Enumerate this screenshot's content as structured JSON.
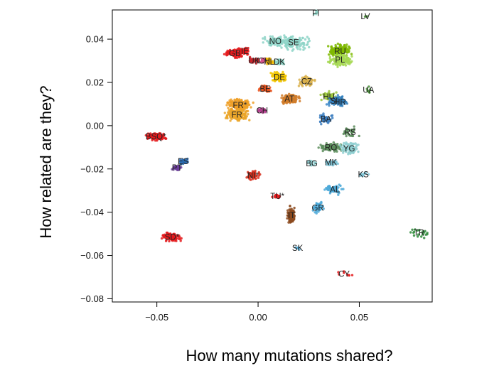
{
  "chart_data": {
    "type": "scatter",
    "title": "",
    "xlabel": "How many mutations shared?",
    "ylabel": "How related are they?",
    "xlim": [
      -0.072,
      0.086
    ],
    "ylim": [
      -0.0815,
      0.0535
    ],
    "x_ticks": [
      -0.05,
      0.0,
      0.05
    ],
    "x_tick_labels": [
      "−0.05",
      "0.00",
      "0.05"
    ],
    "y_ticks": [
      0.04,
      0.02,
      0.0,
      -0.02,
      -0.04,
      -0.06,
      -0.08
    ],
    "y_tick_labels": [
      "0.04",
      "0.02",
      "0.00",
      "−0.02",
      "−0.04",
      "−0.06",
      "−0.08"
    ],
    "grid": false,
    "legend": "none (labels placed directly on clusters)",
    "groups": [
      {
        "label": "FI",
        "x": 0.0285,
        "y": 0.052,
        "color": "#8dd3c7",
        "spread": [
          0.004,
          0.002
        ],
        "n": 6
      },
      {
        "label": "LV",
        "x": 0.053,
        "y": 0.0505,
        "color": "#4a8f3a",
        "spread": [
          0.002,
          0.001
        ],
        "n": 3
      },
      {
        "label": "NO",
        "x": 0.0085,
        "y": 0.039,
        "color": "#8dd3c7",
        "spread": [
          0.008,
          0.003
        ],
        "n": 80
      },
      {
        "label": "SE",
        "x": 0.0175,
        "y": 0.0385,
        "color": "#8dd3c7",
        "spread": [
          0.01,
          0.004
        ],
        "n": 140
      },
      {
        "label": "GB",
        "x": -0.0115,
        "y": 0.0335,
        "color": "#e41a1c",
        "spread": [
          0.006,
          0.003
        ],
        "n": 90
      },
      {
        "label": "IE",
        "x": -0.0065,
        "y": 0.0345,
        "color": "#e41a1c",
        "spread": [
          0.003,
          0.002
        ],
        "n": 40
      },
      {
        "label": "UK",
        "x": -0.002,
        "y": 0.03,
        "color": "#cc2229",
        "spread": [
          0.004,
          0.002
        ],
        "n": 40
      },
      {
        "label": "ICH",
        "x": 0.0025,
        "y": 0.03,
        "color": "#d45087",
        "spread": [
          0.002,
          0.0015
        ],
        "n": 20
      },
      {
        "label": "NL",
        "x": 0.0055,
        "y": 0.0295,
        "color": "#f2b701",
        "spread": [
          0.003,
          0.002
        ],
        "n": 40
      },
      {
        "label": "DK",
        "x": 0.0105,
        "y": 0.0295,
        "color": "#8dd3c7",
        "spread": [
          0.004,
          0.002
        ],
        "n": 40
      },
      {
        "label": "RU",
        "x": 0.0405,
        "y": 0.0345,
        "color": "#7fb800",
        "spread": [
          0.007,
          0.004
        ],
        "n": 160
      },
      {
        "label": "PL",
        "x": 0.0405,
        "y": 0.0305,
        "color": "#a6d854",
        "spread": [
          0.007,
          0.004
        ],
        "n": 160
      },
      {
        "label": "DE",
        "x": 0.0105,
        "y": 0.0225,
        "color": "#f2c500",
        "spread": [
          0.005,
          0.003
        ],
        "n": 120
      },
      {
        "label": "CZ",
        "x": 0.024,
        "y": 0.0205,
        "color": "#d9b04a",
        "spread": [
          0.005,
          0.003
        ],
        "n": 60
      },
      {
        "label": "UA",
        "x": 0.0545,
        "y": 0.0165,
        "color": "#4a8f3a",
        "spread": [
          0.003,
          0.002
        ],
        "n": 8
      },
      {
        "label": "BE",
        "x": 0.0035,
        "y": 0.017,
        "color": "#e8501a",
        "spread": [
          0.004,
          0.002
        ],
        "n": 60
      },
      {
        "label": "AT",
        "x": 0.0155,
        "y": 0.0125,
        "color": "#d17d2a",
        "spread": [
          0.006,
          0.003
        ],
        "n": 120
      },
      {
        "label": "HU",
        "x": 0.035,
        "y": 0.0135,
        "color": "#9bc53d",
        "spread": [
          0.005,
          0.003
        ],
        "n": 70
      },
      {
        "label": "SI",
        "x": 0.0375,
        "y": 0.0115,
        "color": "#3a87c8",
        "spread": [
          0.005,
          0.003
        ],
        "n": 60
      },
      {
        "label": "HR",
        "x": 0.0405,
        "y": 0.011,
        "color": "#2e7bb8",
        "spread": [
          0.005,
          0.003
        ],
        "n": 60
      },
      {
        "label": "FR*",
        "x": -0.009,
        "y": 0.0095,
        "color": "#ee9f27",
        "spread": [
          0.008,
          0.004
        ],
        "n": 160
      },
      {
        "label": "FR",
        "x": -0.0105,
        "y": 0.005,
        "color": "#eba62a",
        "spread": [
          0.008,
          0.004
        ],
        "n": 160
      },
      {
        "label": "CH",
        "x": 0.002,
        "y": 0.007,
        "color": "#b5408f",
        "spread": [
          0.003,
          0.0015
        ],
        "n": 30
      },
      {
        "label": "BA",
        "x": 0.0335,
        "y": 0.003,
        "color": "#3a7dbf",
        "spread": [
          0.005,
          0.003
        ],
        "n": 50
      },
      {
        "label": "RS",
        "x": 0.0455,
        "y": -0.003,
        "color": "#5b8c5a",
        "spread": [
          0.005,
          0.003
        ],
        "n": 30
      },
      {
        "label": "BSQ*",
        "x": -0.0505,
        "y": -0.005,
        "color": "#e41a1c",
        "spread": [
          0.007,
          0.0025
        ],
        "n": 130
      },
      {
        "label": "RO",
        "x": 0.036,
        "y": -0.01,
        "color": "#5b8c5a",
        "spread": [
          0.007,
          0.0025
        ],
        "n": 120
      },
      {
        "label": "YG",
        "x": 0.045,
        "y": -0.0105,
        "color": "#8fcfd1",
        "spread": [
          0.006,
          0.004
        ],
        "n": 100
      },
      {
        "label": "ES",
        "x": -0.037,
        "y": -0.0165,
        "color": "#2b6cb3",
        "spread": [
          0.003,
          0.0015
        ],
        "n": 40
      },
      {
        "label": "PT",
        "x": -0.04,
        "y": -0.0195,
        "color": "#6a3d9a",
        "spread": [
          0.003,
          0.0015
        ],
        "n": 40
      },
      {
        "label": "BG",
        "x": 0.0265,
        "y": -0.0175,
        "color": "#8fcfd1",
        "spread": [
          0.003,
          0.002
        ],
        "n": 20
      },
      {
        "label": "MK",
        "x": 0.036,
        "y": -0.017,
        "color": "#80c5d8",
        "spread": [
          0.005,
          0.002
        ],
        "n": 40
      },
      {
        "label": "KS",
        "x": 0.052,
        "y": -0.0225,
        "color": "#80c5d8",
        "spread": [
          0.003,
          0.0015
        ],
        "n": 15
      },
      {
        "label": "NI*",
        "x": -0.0025,
        "y": -0.023,
        "color": "#d7301f",
        "spread": [
          0.004,
          0.003
        ],
        "n": 60
      },
      {
        "label": "AL",
        "x": 0.038,
        "y": -0.0295,
        "color": "#4aa8d8",
        "spread": [
          0.006,
          0.003
        ],
        "n": 60
      },
      {
        "label": "TU*",
        "x": 0.0095,
        "y": -0.0325,
        "color": "#e41a1c",
        "spread": [
          0.003,
          0.0015
        ],
        "n": 20
      },
      {
        "label": "GR",
        "x": 0.0295,
        "y": -0.038,
        "color": "#4aa8d8",
        "spread": [
          0.004,
          0.004
        ],
        "n": 40
      },
      {
        "label": "IT",
        "x": 0.0165,
        "y": -0.0415,
        "color": "#8c4a1f",
        "spread": [
          0.0025,
          0.0045
        ],
        "n": 130
      },
      {
        "label": "SD*",
        "x": -0.0425,
        "y": -0.0515,
        "color": "#e41a1c",
        "spread": [
          0.006,
          0.0025
        ],
        "n": 130
      },
      {
        "label": "TR",
        "x": 0.0795,
        "y": -0.0495,
        "color": "#2e8b3a",
        "spread": [
          0.006,
          0.004
        ],
        "n": 20
      },
      {
        "label": "SK",
        "x": 0.0195,
        "y": -0.0565,
        "color": "#4aa8d8",
        "spread": [
          0.002,
          0.002
        ],
        "n": 5
      },
      {
        "label": "CY",
        "x": 0.0425,
        "y": -0.0685,
        "color": "#e41a1c",
        "spread": [
          0.008,
          0.002
        ],
        "n": 8
      }
    ]
  }
}
